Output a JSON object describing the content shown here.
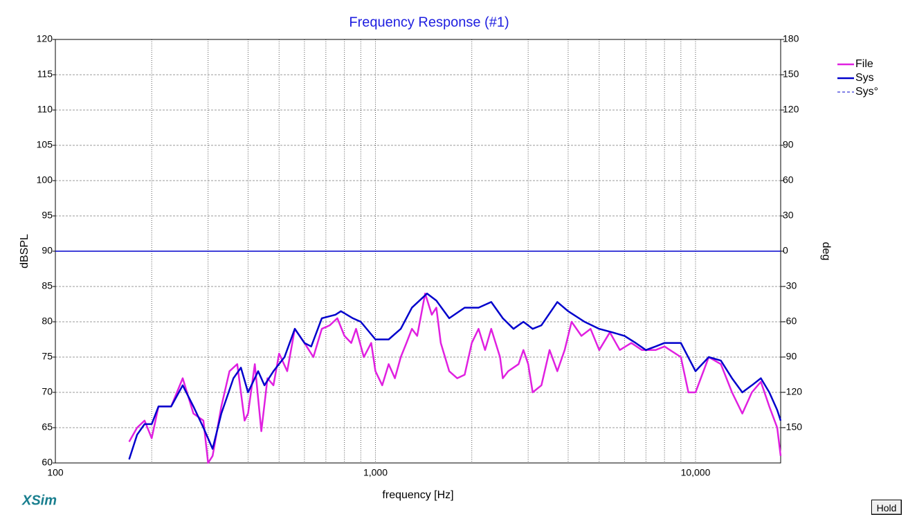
{
  "chart_data": {
    "type": "line",
    "title": "Frequency Response (#1)",
    "xlabel": "frequency [Hz]",
    "ylabel": "dBSPL",
    "y2label": "deg",
    "logo": "XSim",
    "button": "Hold",
    "log_x": true,
    "grid": true,
    "legend": "right",
    "xlim": [
      100,
      18450
    ],
    "xticks": [
      100,
      {
        "value": 1000,
        "label": "1,000"
      },
      {
        "value": 10000,
        "label": "10,000"
      }
    ],
    "xminor_ticks": [
      200,
      300,
      400,
      500,
      600,
      700,
      800,
      900,
      2000,
      3000,
      4000,
      5000,
      6000,
      7000,
      8000,
      9000
    ],
    "ylim": [
      60,
      120
    ],
    "yticks": [
      60,
      65,
      70,
      75,
      80,
      85,
      90,
      95,
      100,
      105,
      110,
      115,
      120
    ],
    "y2lim": [
      -180,
      180
    ],
    "y2ticks": [
      -150,
      -120,
      -90,
      -60,
      -30,
      0,
      30,
      60,
      90,
      120,
      150,
      180
    ],
    "series": [
      {
        "name": "File",
        "color": "#e020e0",
        "x": [
          170,
          180,
          190,
          200,
          210,
          230,
          250,
          270,
          290,
          300,
          310,
          330,
          350,
          370,
          390,
          400,
          420,
          440,
          460,
          480,
          500,
          530,
          560,
          600,
          640,
          680,
          720,
          760,
          800,
          840,
          870,
          920,
          970,
          1000,
          1050,
          1100,
          1150,
          1200,
          1250,
          1300,
          1350,
          1430,
          1500,
          1550,
          1600,
          1700,
          1800,
          1900,
          2000,
          2100,
          2200,
          2300,
          2450,
          2500,
          2600,
          2800,
          2900,
          3000,
          3100,
          3300,
          3500,
          3700,
          3900,
          4100,
          4400,
          4700,
          5000,
          5400,
          5800,
          6300,
          6800,
          7500,
          8000,
          9000,
          9500,
          10000,
          11000,
          12000,
          13000,
          14000,
          15000,
          16000,
          17000,
          18000,
          18450
        ],
        "values": [
          63,
          65,
          66,
          63.5,
          68,
          68,
          72,
          67,
          66,
          60,
          61,
          68,
          73,
          74,
          66,
          67,
          74,
          64.5,
          72,
          71,
          75.5,
          73,
          79,
          77,
          75,
          79,
          79.5,
          80.5,
          78,
          77,
          79,
          75,
          77,
          73,
          71,
          74,
          72,
          75,
          77,
          79,
          78,
          84,
          81,
          82,
          77,
          73,
          72,
          72.5,
          77,
          79,
          76,
          79,
          75,
          72,
          73,
          74,
          76,
          74,
          70,
          71,
          76,
          73,
          76,
          80,
          78,
          79,
          76,
          78.5,
          76,
          77,
          76,
          76,
          76.5,
          75,
          70,
          70,
          75,
          74,
          70,
          67,
          70,
          71.5,
          68,
          65,
          61
        ]
      },
      {
        "name": "Sys",
        "color": "#0000cc",
        "x": [
          170,
          180,
          190,
          200,
          210,
          230,
          250,
          270,
          290,
          310,
          330,
          360,
          380,
          400,
          430,
          450,
          480,
          520,
          560,
          600,
          630,
          680,
          750,
          780,
          850,
          900,
          1000,
          1100,
          1200,
          1300,
          1450,
          1550,
          1700,
          1900,
          2100,
          2300,
          2500,
          2700,
          2900,
          3100,
          3300,
          3700,
          4000,
          4500,
          5000,
          5500,
          6000,
          6500,
          7000,
          7500,
          8000,
          9000,
          10000,
          11000,
          12000,
          13000,
          14000,
          15000,
          16000,
          17000,
          18000,
          18450
        ],
        "values": [
          60.5,
          64,
          65.5,
          65.5,
          68,
          68,
          71,
          68,
          65,
          62,
          67,
          72,
          73.5,
          70,
          73,
          71,
          73,
          75,
          79,
          77,
          76.5,
          80.5,
          81,
          81.5,
          80.5,
          80,
          77.5,
          77.5,
          79,
          82,
          84,
          83,
          80.5,
          82,
          82,
          82.8,
          80.5,
          79,
          80,
          79,
          79.5,
          82.8,
          81.5,
          80,
          79,
          78.5,
          78,
          77,
          76,
          76.5,
          77,
          77,
          73,
          75,
          74.5,
          72,
          70,
          71,
          72,
          70,
          67.5,
          66
        ]
      },
      {
        "name": "Sys°",
        "color": "#0000cc",
        "axis": "y2",
        "legend_style": "dashed",
        "x": [
          100,
          18450
        ],
        "values": [
          0,
          0
        ]
      }
    ]
  }
}
